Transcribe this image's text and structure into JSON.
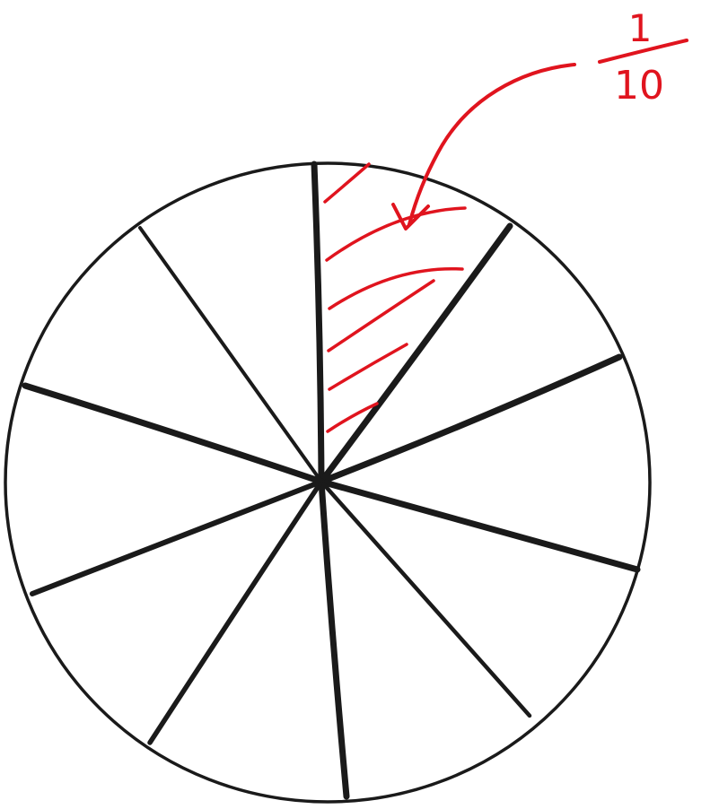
{
  "diagram": {
    "total_parts": 10,
    "shaded_parts": 1,
    "label": {
      "numerator": "1",
      "denominator": "10"
    },
    "colors": {
      "outline": "#1a1a1a",
      "highlight": "#e0141e",
      "background": "#ffffff"
    }
  }
}
